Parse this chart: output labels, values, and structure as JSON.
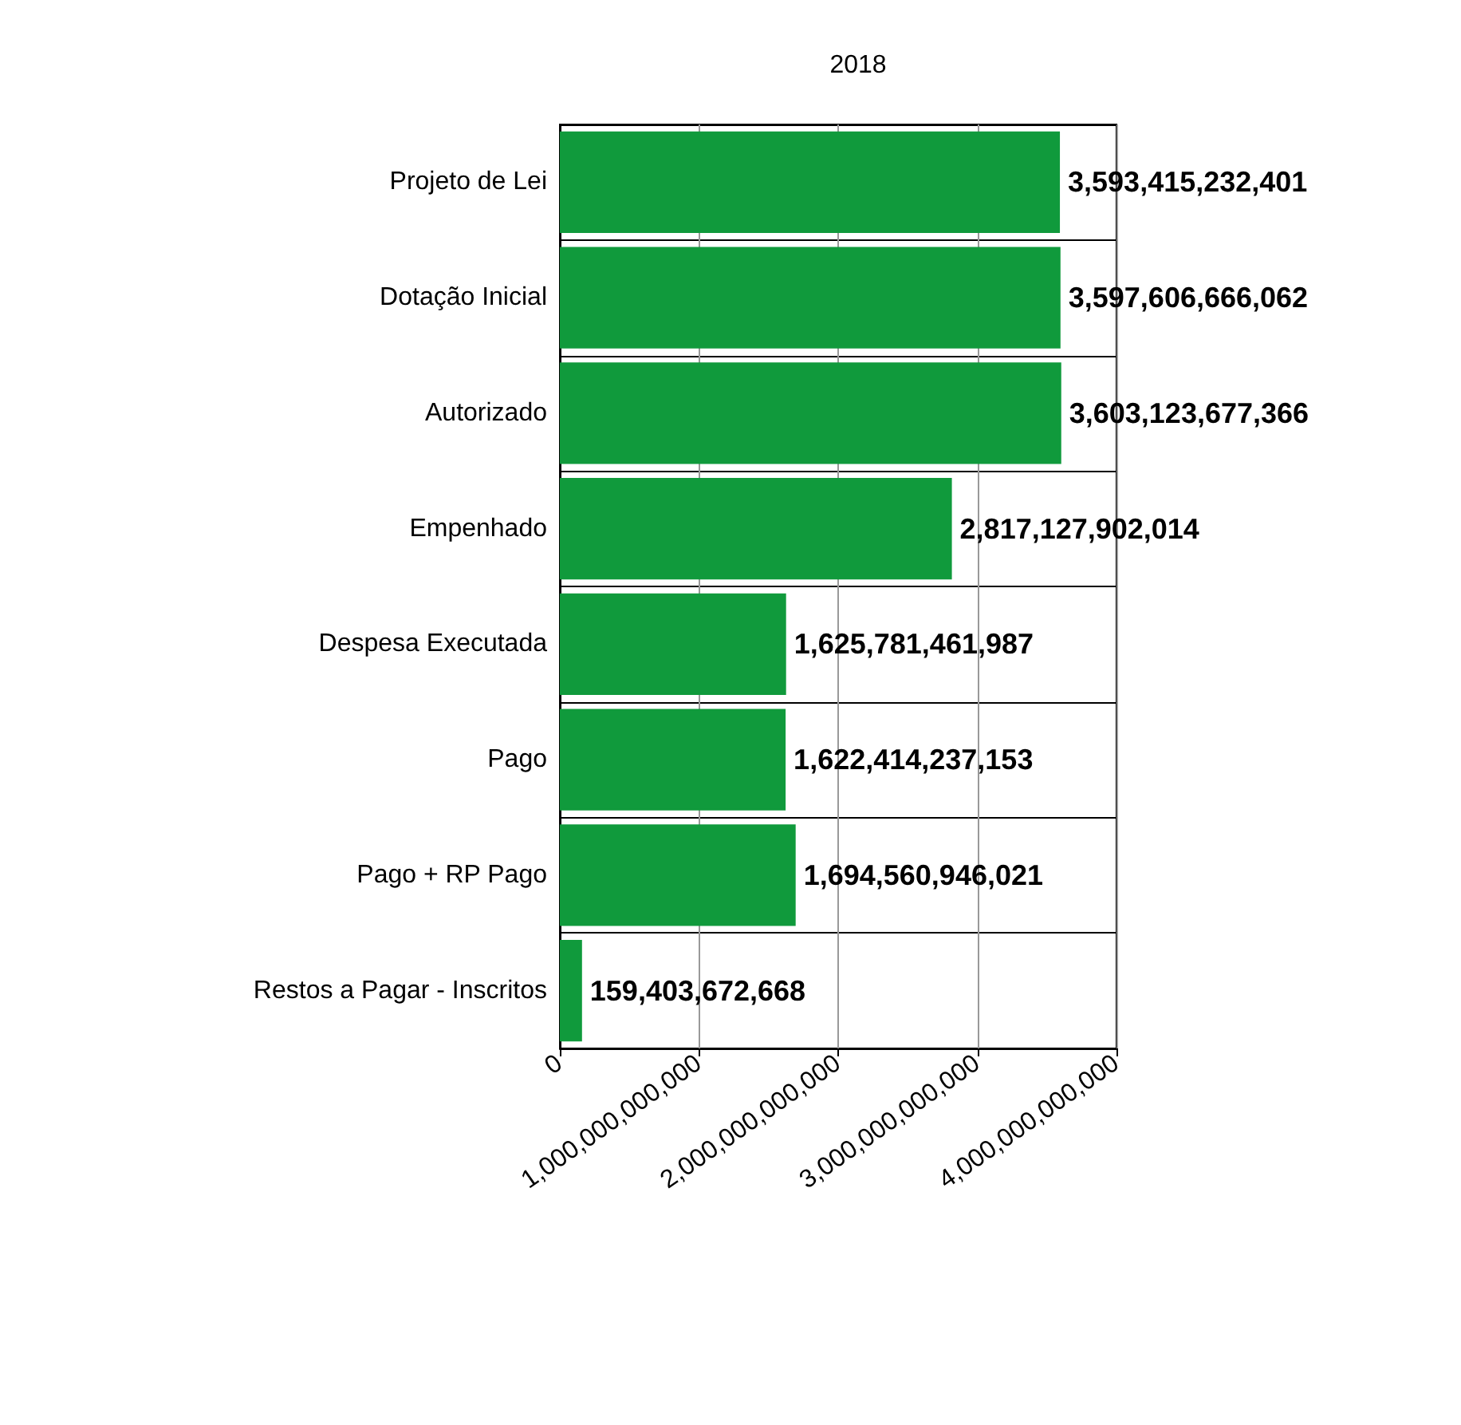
{
  "chart_data": {
    "type": "bar",
    "orientation": "horizontal",
    "title": "2018",
    "categories": [
      "Projeto de Lei",
      "Dotação Inicial",
      "Autorizado",
      "Empenhado",
      "Despesa Executada",
      "Pago",
      "Pago + RP Pago",
      "Restos a Pagar - Inscritos"
    ],
    "values": [
      3593415232401,
      3597606666062,
      3603123677366,
      2817127902014,
      1625781461987,
      1622414237153,
      1694560946021,
      159403672668
    ],
    "value_labels": [
      "3,593,415,232,401",
      "3,597,606,666,062",
      "3,603,123,677,366",
      "2,817,127,902,014",
      "1,625,781,461,987",
      "1,622,414,237,153",
      "1,694,560,946,021",
      "159,403,672,668"
    ],
    "color": "#109a3c",
    "grid": true,
    "xlim": [
      0,
      4000000000000
    ],
    "xticks": [
      0,
      {
        "value": 1000000000000,
        "label": "1,000,000,000,000"
      },
      {
        "value": 2000000000000,
        "label": "2,000,000,000,000"
      },
      {
        "value": 3000000000000,
        "label": "3,000,000,000,000"
      },
      {
        "value": 4000000000000,
        "label": "4,000,000,000,000"
      }
    ]
  }
}
